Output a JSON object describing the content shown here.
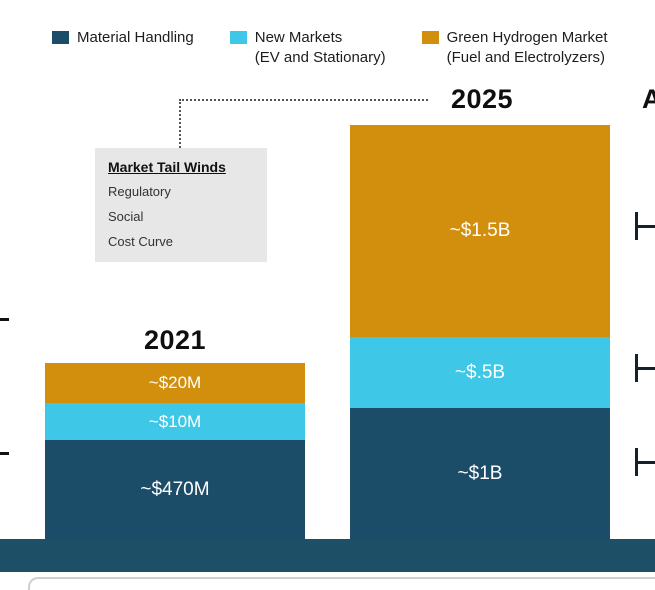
{
  "legend": {
    "items": [
      {
        "line1": "Material Handling",
        "color": "#1b4d68"
      },
      {
        "line1": "New Markets",
        "line2": "(EV and Stationary)",
        "color": "#3ec7e6"
      },
      {
        "line1": "Green Hydrogen Market",
        "line2": "(Fuel and Electrolyzers)",
        "color": "#d28f0e"
      }
    ]
  },
  "annotation_box": {
    "title": "Market Tail Winds",
    "items": [
      "Regulatory",
      "Social",
      "Cost Curve"
    ]
  },
  "bars": [
    {
      "year": "2021",
      "segments": [
        {
          "name": "Green Hydrogen Market (Fuel and Electrolyzers)",
          "label": "~$20M"
        },
        {
          "name": "New Markets (EV and Stationary)",
          "label": "~$10M"
        },
        {
          "name": "Material Handling",
          "label": "~$470M"
        }
      ]
    },
    {
      "year": "2025",
      "segments": [
        {
          "name": "Green Hydrogen Market (Fuel and Electrolyzers)",
          "label": "~$1.5B"
        },
        {
          "name": "New Markets (EV and Stationary)",
          "label": "~$.5B"
        },
        {
          "name": "Material Handling",
          "label": "~$1B"
        }
      ]
    }
  ],
  "cropped_text_right": "A",
  "chart_data": {
    "type": "bar",
    "stacked": true,
    "categories": [
      "2021",
      "2025"
    ],
    "series": [
      {
        "name": "Material Handling",
        "color": "#1b4d68",
        "values_label": [
          "~$470M",
          "~$1B"
        ],
        "values_billions": [
          0.47,
          1.0
        ]
      },
      {
        "name": "New Markets (EV and Stationary)",
        "color": "#3ec7e6",
        "values_label": [
          "~$10M",
          "~$.5B"
        ],
        "values_billions": [
          0.01,
          0.5
        ]
      },
      {
        "name": "Green Hydrogen Market (Fuel and Electrolyzers)",
        "color": "#d28f0e",
        "values_label": [
          "~$20M",
          "~$1.5B"
        ],
        "values_billions": [
          0.02,
          1.5
        ]
      }
    ],
    "title": "",
    "xlabel": "",
    "ylabel": "",
    "legend_position": "top",
    "value_labels": "inside",
    "axes_visible": false,
    "annotations": [
      {
        "title": "Market Tail Winds",
        "items": [
          "Regulatory",
          "Social",
          "Cost Curve"
        ],
        "points_to": "2025"
      }
    ]
  }
}
